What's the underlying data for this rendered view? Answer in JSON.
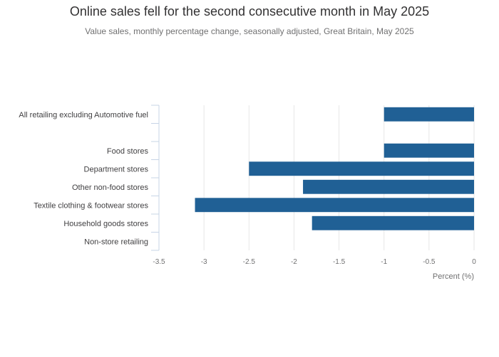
{
  "chart_data": {
    "type": "bar",
    "orientation": "horizontal",
    "title": "Online sales fell for the second consecutive month in May 2025",
    "subtitle": "Value sales, monthly percentage change, seasonally adjusted, Great Britain, May 2025",
    "xlabel": "Percent (%)",
    "ylabel": "",
    "categories": [
      "All retailing excluding Automotive fuel",
      "",
      "Food stores",
      "Department stores",
      "Other non-food stores",
      "Textile clothing & footwear stores",
      "Household goods stores",
      "Non-store retailing"
    ],
    "values": [
      -1.0,
      null,
      -1.0,
      -2.5,
      -1.9,
      -3.1,
      -1.8,
      null
    ],
    "xlim": [
      -3.5,
      0
    ],
    "xticks": [
      "-3.5",
      "-3",
      "-2.5",
      "-2",
      "-1.5",
      "-1",
      "-0.5",
      "0"
    ],
    "grid": true,
    "legend": "none",
    "bar_color": "#206095"
  }
}
